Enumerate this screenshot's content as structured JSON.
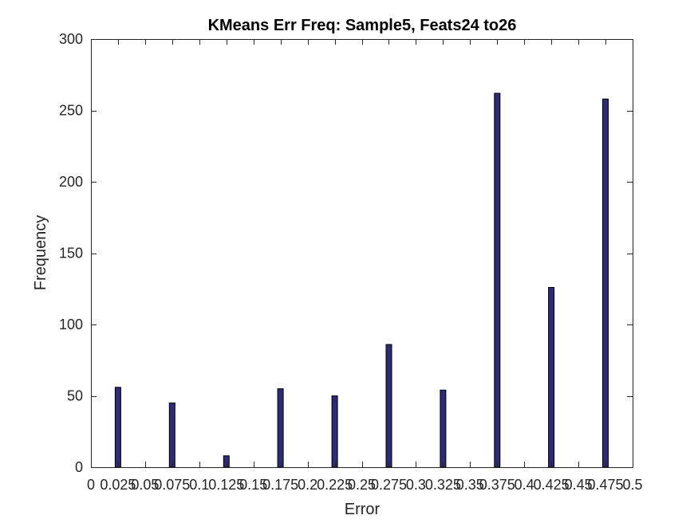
{
  "chart_data": {
    "type": "bar",
    "title": "KMeans Err Freq: Sample5, Feats24 to26",
    "xlabel": "Error",
    "ylabel": "Frequency",
    "xlim": [
      0,
      0.5
    ],
    "ylim": [
      0,
      300
    ],
    "grid": false,
    "bar_color": "#2E2A78",
    "x": [
      0.025,
      0.075,
      0.125,
      0.175,
      0.225,
      0.275,
      0.325,
      0.375,
      0.425,
      0.475
    ],
    "values": [
      56,
      45,
      8,
      55,
      50,
      86,
      54,
      262,
      126,
      258
    ],
    "x_ticks": [
      0,
      0.025,
      0.05,
      0.075,
      0.1,
      0.125,
      0.15,
      0.175,
      0.2,
      0.225,
      0.25,
      0.275,
      0.3,
      0.325,
      0.35,
      0.375,
      0.4,
      0.425,
      0.45,
      0.475,
      0.5
    ],
    "x_tick_labels": [
      "0",
      "0.025",
      "0.05",
      "0.075",
      "0.1",
      "0.125",
      "0.15",
      "0.175",
      "0.2",
      "0.225",
      "0.25",
      "0.275",
      "0.3",
      "0.325",
      "0.35",
      "0.375",
      "0.4",
      "0.425",
      "0.45",
      "0.475",
      "0.5"
    ],
    "y_ticks": [
      0,
      50,
      100,
      150,
      200,
      250,
      300
    ],
    "y_tick_labels": [
      "0",
      "50",
      "100",
      "150",
      "200",
      "250",
      "300"
    ]
  }
}
